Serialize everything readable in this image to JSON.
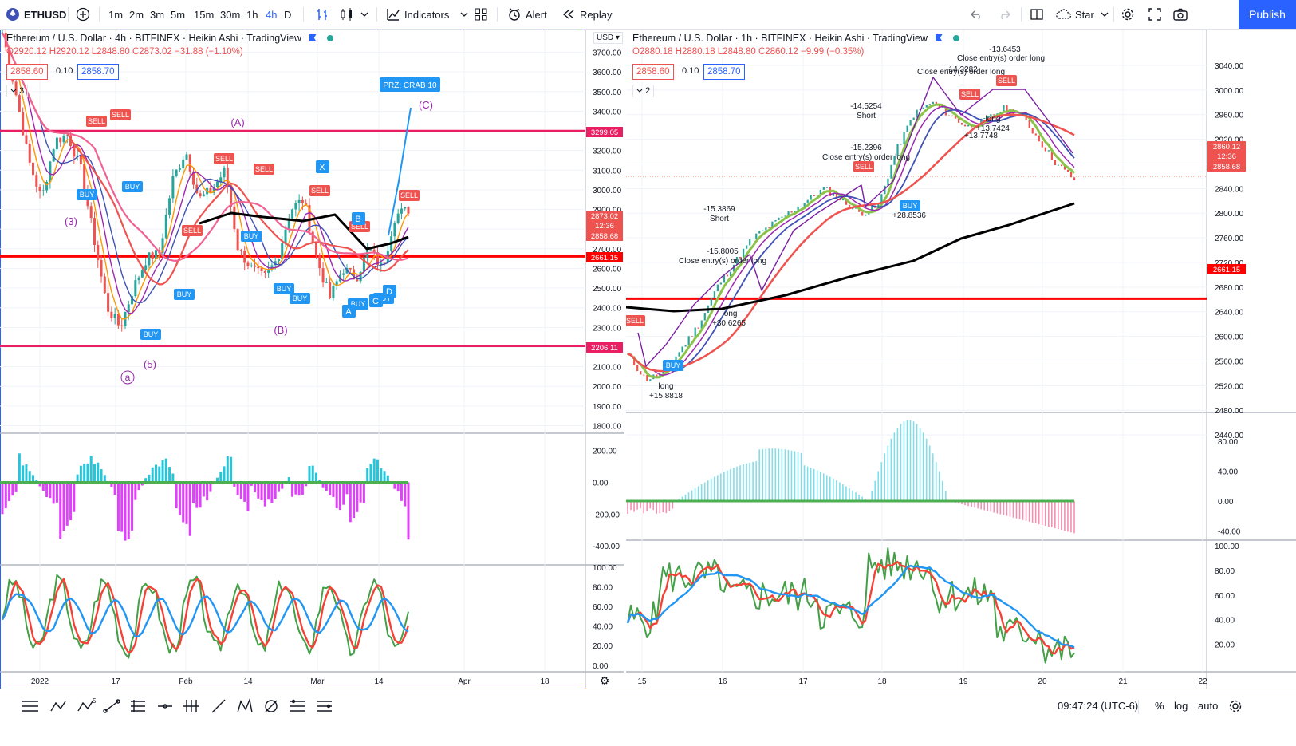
{
  "toolbar": {
    "symbol": "ETHUSD",
    "intervals": [
      "1m",
      "2m",
      "3m",
      "5m",
      "15m",
      "30m",
      "1h",
      "4h",
      "D"
    ],
    "active_interval": "4h",
    "indicators": "Indicators",
    "alert": "Alert",
    "replay": "Replay",
    "layout_name": "Star",
    "publish": "Publish"
  },
  "left_chart": {
    "title": "Ethereum / U.S. Dollar · 4h · BITFINEX · Heikin Ashi · TradingView",
    "ohlc": "O2920.12 H2920.12 L2848.80 C2873.02 −31.88 (−1.10%)",
    "bid": "2858.60",
    "spread": "0.10",
    "ask": "2858.70",
    "indicator_count": "3",
    "currency": "USD",
    "price_ticks": [
      "3700.00",
      "3600.00",
      "3500.00",
      "3400.00",
      "3300.00",
      "3200.00",
      "3100.00",
      "3000.00",
      "2900.00",
      "2800.00",
      "2700.00",
      "2600.00",
      "2500.00",
      "2400.00",
      "2300.00",
      "2200.00",
      "2100.00",
      "2000.00",
      "1900.00",
      "1800.00"
    ],
    "osc_ticks": [
      "200.00",
      "0.00",
      "-200.00",
      "-400.00"
    ],
    "rsi_ticks": [
      "100.00",
      "80.00",
      "60.00",
      "40.00",
      "20.00",
      "0.00"
    ],
    "time_labels": [
      "2022",
      "17",
      "Feb",
      "14",
      "Mar",
      "14",
      "Apr",
      "18"
    ],
    "price_labels": [
      "3299.05",
      "2873.02",
      "12:36",
      "2858.68",
      "2661.15",
      "2206.11"
    ],
    "pattern_label": "PRZ: CRAB 10",
    "wave_labels": [
      "(A)",
      "(B)",
      "(C)",
      "a",
      "(3)",
      "(5)",
      "X",
      "A",
      "B",
      "C",
      "D"
    ],
    "signal_labels": [
      "BUY",
      "SELL"
    ]
  },
  "right_chart": {
    "title": "Ethereum / U.S. Dollar · 1h · BITFINEX · Heikin Ashi · TradingView",
    "ohlc": "O2880.18 H2880.18 L2848.80 C2860.12 −9.99 (−0.35%)",
    "bid": "2858.60",
    "spread": "0.10",
    "ask": "2858.70",
    "indicator_count": "2",
    "price_ticks": [
      "3040.00",
      "3000.00",
      "2960.00",
      "2920.00",
      "2880.00",
      "2840.00",
      "2800.00",
      "2760.00",
      "2720.00",
      "2680.00",
      "2640.00",
      "2600.00",
      "2560.00",
      "2520.00",
      "2480.00",
      "2440.00"
    ],
    "osc_ticks": [
      "80.00",
      "40.00",
      "0.00",
      "-40.00"
    ],
    "rsi_ticks": [
      "100.00",
      "80.00",
      "60.00",
      "40.00",
      "20.00"
    ],
    "time_labels": [
      "15",
      "16",
      "17",
      "18",
      "19",
      "20",
      "21",
      "22"
    ],
    "price_labels": [
      "2860.12",
      "12:36",
      "2858.68",
      "2661.15"
    ],
    "annotations": [
      {
        "text": "long",
        "dx": 0
      },
      {
        "text": "+15.8818"
      },
      {
        "text": "-15.3869"
      },
      {
        "text": "Short"
      },
      {
        "text": "-15.8005"
      },
      {
        "text": "Close entry(s) order long"
      },
      {
        "text": "+30.6265"
      },
      {
        "text": "-14.5254"
      },
      {
        "text": "-15.2396"
      },
      {
        "text": "+28.8536"
      },
      {
        "text": "-14.3282"
      },
      {
        "text": "-13.6453"
      },
      {
        "text": "+13.7424"
      },
      {
        "text": "+13.7748"
      }
    ]
  },
  "bottom": {
    "time": "09:47:24 (UTC-6)",
    "percent": "%",
    "log": "log",
    "auto": "auto"
  },
  "colors": {
    "accent": "#2962ff",
    "sell": "#ef5350",
    "buy": "#2196f3",
    "magenta_line": "#e91e63",
    "red_line": "#ff0000"
  }
}
